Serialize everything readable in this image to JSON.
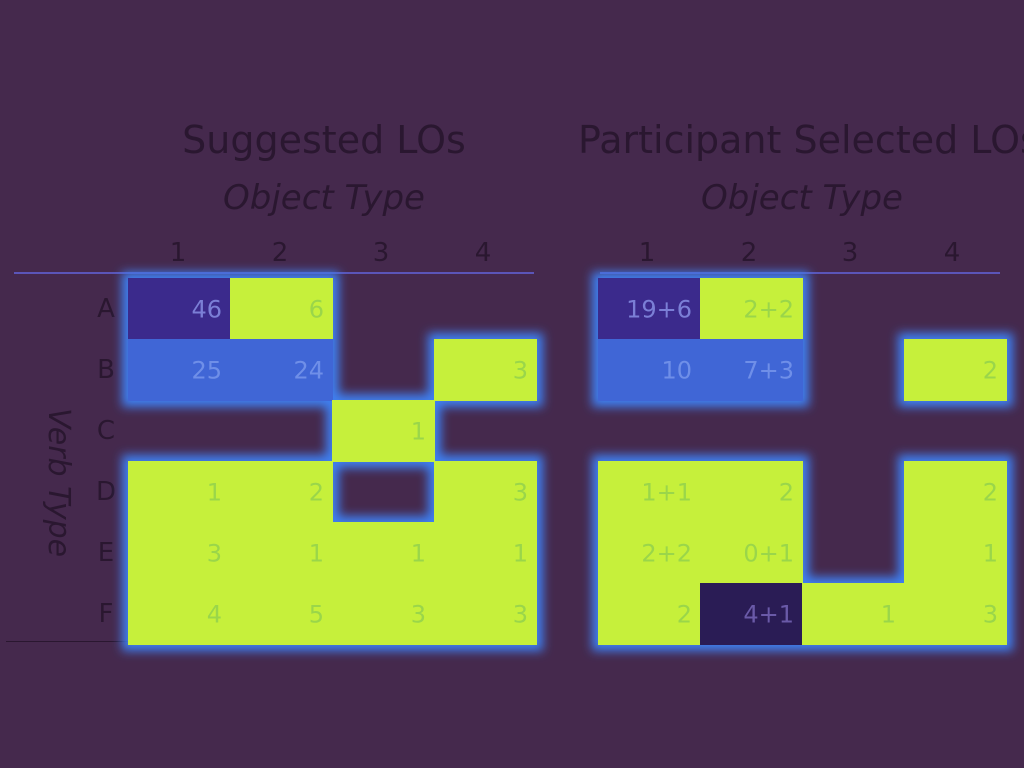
{
  "chart_data": [
    {
      "type": "heatmap",
      "title": "Suggested LOs",
      "xlabel": "Object Type",
      "ylabel": "Verb Type",
      "x_categories": [
        "1",
        "2",
        "3",
        "4"
      ],
      "y_categories": [
        "A",
        "B",
        "C",
        "D",
        "E",
        "F"
      ],
      "cells": [
        {
          "row": "A",
          "col": "1",
          "label": "46",
          "fill": "#3a2a8c",
          "text": "#7b7fd6"
        },
        {
          "row": "A",
          "col": "2",
          "label": "6",
          "fill": "#c6f03a",
          "text": "#9ad64a"
        },
        {
          "row": "B",
          "col": "1",
          "label": "25",
          "fill": "#4166d6",
          "text": "#6f8fe8"
        },
        {
          "row": "B",
          "col": "2",
          "label": "24",
          "fill": "#4166d6",
          "text": "#6f8fe8"
        },
        {
          "row": "B",
          "col": "4",
          "label": "3",
          "fill": "#c6f03a",
          "text": "#9ad64a"
        },
        {
          "row": "C",
          "col": "3",
          "label": "1",
          "fill": "#c6f03a",
          "text": "#9ad64a"
        },
        {
          "row": "D",
          "col": "1",
          "label": "1",
          "fill": "#c6f03a",
          "text": "#9ad64a"
        },
        {
          "row": "D",
          "col": "2",
          "label": "2",
          "fill": "#c6f03a",
          "text": "#9ad64a"
        },
        {
          "row": "D",
          "col": "4",
          "label": "3",
          "fill": "#c6f03a",
          "text": "#9ad64a"
        },
        {
          "row": "E",
          "col": "1",
          "label": "3",
          "fill": "#c6f03a",
          "text": "#9ad64a"
        },
        {
          "row": "E",
          "col": "2",
          "label": "1",
          "fill": "#c6f03a",
          "text": "#9ad64a"
        },
        {
          "row": "E",
          "col": "3",
          "label": "1",
          "fill": "#c6f03a",
          "text": "#9ad64a"
        },
        {
          "row": "E",
          "col": "4",
          "label": "1",
          "fill": "#c6f03a",
          "text": "#9ad64a"
        },
        {
          "row": "F",
          "col": "1",
          "label": "4",
          "fill": "#c6f03a",
          "text": "#9ad64a"
        },
        {
          "row": "F",
          "col": "2",
          "label": "5",
          "fill": "#c6f03a",
          "text": "#9ad64a"
        },
        {
          "row": "F",
          "col": "3",
          "label": "3",
          "fill": "#c6f03a",
          "text": "#9ad64a"
        },
        {
          "row": "F",
          "col": "4",
          "label": "3",
          "fill": "#c6f03a",
          "text": "#9ad64a"
        }
      ]
    },
    {
      "type": "heatmap",
      "title": "Participant Selected LOs",
      "xlabel": "Object Type",
      "ylabel": "Verb Type",
      "x_categories": [
        "1",
        "2",
        "3",
        "4"
      ],
      "y_categories": [
        "A",
        "B",
        "C",
        "D",
        "E",
        "F"
      ],
      "cells": [
        {
          "row": "A",
          "col": "1",
          "label": "19+6",
          "fill": "#3a2a8c",
          "text": "#7b7fd6"
        },
        {
          "row": "A",
          "col": "2",
          "label": "2+2",
          "fill": "#c6f03a",
          "text": "#9ad64a"
        },
        {
          "row": "B",
          "col": "1",
          "label": "10",
          "fill": "#4166d6",
          "text": "#6f8fe8"
        },
        {
          "row": "B",
          "col": "2",
          "label": "7+3",
          "fill": "#4166d6",
          "text": "#6f8fe8"
        },
        {
          "row": "B",
          "col": "4",
          "label": "2",
          "fill": "#c6f03a",
          "text": "#9ad64a"
        },
        {
          "row": "D",
          "col": "1",
          "label": "1+1",
          "fill": "#c6f03a",
          "text": "#9ad64a"
        },
        {
          "row": "D",
          "col": "2",
          "label": "2",
          "fill": "#c6f03a",
          "text": "#9ad64a"
        },
        {
          "row": "D",
          "col": "4",
          "label": "2",
          "fill": "#c6f03a",
          "text": "#9ad64a"
        },
        {
          "row": "E",
          "col": "1",
          "label": "2+2",
          "fill": "#c6f03a",
          "text": "#9ad64a"
        },
        {
          "row": "E",
          "col": "2",
          "label": "0+1",
          "fill": "#c6f03a",
          "text": "#9ad64a"
        },
        {
          "row": "E",
          "col": "4",
          "label": "1",
          "fill": "#c6f03a",
          "text": "#9ad64a"
        },
        {
          "row": "F",
          "col": "1",
          "label": "2",
          "fill": "#c6f03a",
          "text": "#9ad64a"
        },
        {
          "row": "F",
          "col": "2",
          "label": "4+1",
          "fill": "#2a1f55",
          "text": "#6a5aa8"
        },
        {
          "row": "F",
          "col": "3",
          "label": "1",
          "fill": "#c6f03a",
          "text": "#9ad64a"
        },
        {
          "row": "F",
          "col": "4",
          "label": "3",
          "fill": "#c6f03a",
          "text": "#9ad64a"
        }
      ]
    }
  ],
  "colors": {
    "background": "#45294d",
    "glow": "#3f7ff0",
    "axis_line": "#5b55b8",
    "label_text": "#2a1730"
  }
}
